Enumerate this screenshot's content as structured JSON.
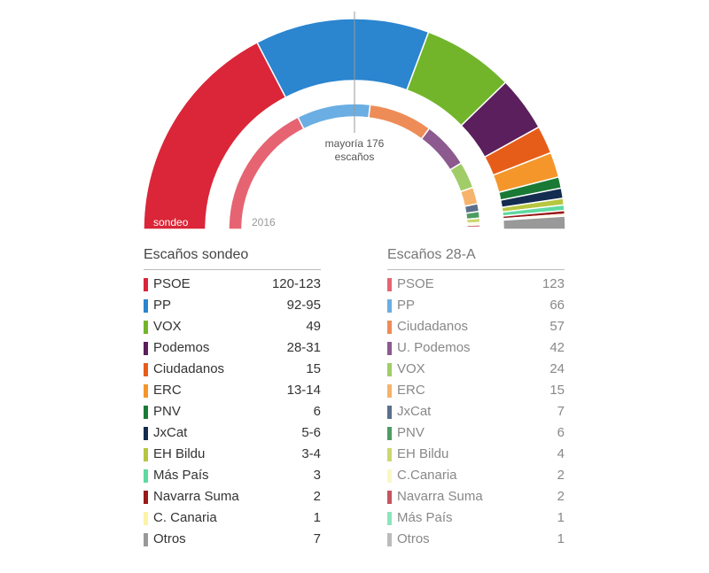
{
  "chart_data": [
    {
      "type": "parliament-semicircle",
      "label": "sondeo",
      "series": [
        {
          "name": "PSOE",
          "value": 121.5,
          "color": "#da2638"
        },
        {
          "name": "PP",
          "value": 93.5,
          "color": "#2b85cf"
        },
        {
          "name": "VOX",
          "value": 49,
          "color": "#72b52b"
        },
        {
          "name": "Podemos",
          "value": 29.5,
          "color": "#5a1f5c"
        },
        {
          "name": "Ciudadanos",
          "value": 15,
          "color": "#e65d1a"
        },
        {
          "name": "ERC",
          "value": 13.5,
          "color": "#f4962a"
        },
        {
          "name": "PNV",
          "value": 6,
          "color": "#1a7a35"
        },
        {
          "name": "JxCat",
          "value": 5.5,
          "color": "#142c4f"
        },
        {
          "name": "EH Bildu",
          "value": 3.5,
          "color": "#b7c640"
        },
        {
          "name": "Más País",
          "value": 3,
          "color": "#5fd9a2"
        },
        {
          "name": "Navarra Suma",
          "value": 2,
          "color": "#9a1919"
        },
        {
          "name": "C. Canaria",
          "value": 1,
          "color": "#fbf4a8"
        },
        {
          "name": "Otros",
          "value": 7,
          "color": "#999999"
        }
      ]
    },
    {
      "type": "parliament-semicircle",
      "label": "2016",
      "series": [
        {
          "name": "PSOE",
          "value": 123,
          "color": "#e66472"
        },
        {
          "name": "PP",
          "value": 66,
          "color": "#6aaee3"
        },
        {
          "name": "Ciudadanos",
          "value": 57,
          "color": "#ee8c58"
        },
        {
          "name": "U. Podemos",
          "value": 42,
          "color": "#8c5a8f"
        },
        {
          "name": "VOX",
          "value": 24,
          "color": "#a0cd67"
        },
        {
          "name": "ERC",
          "value": 15,
          "color": "#f5b36b"
        },
        {
          "name": "JxCat",
          "value": 7,
          "color": "#5b6f8c"
        },
        {
          "name": "PNV",
          "value": 6,
          "color": "#4f9c63"
        },
        {
          "name": "EH Bildu",
          "value": 4,
          "color": "#ccd76f"
        },
        {
          "name": "C.Canaria",
          "value": 2,
          "color": "#fbf7c6"
        },
        {
          "name": "Navarra Suma",
          "value": 2,
          "color": "#c55560"
        },
        {
          "name": "Más País",
          "value": 1,
          "color": "#8ee5bd"
        },
        {
          "name": "Otros",
          "value": 1,
          "color": "#bbbbbb"
        }
      ]
    }
  ],
  "majority": {
    "line1": "mayoría 176",
    "line2": "escaños"
  },
  "table_left": {
    "title": "Escaños sondeo",
    "rows": [
      {
        "party": "PSOE",
        "seats": "120-123",
        "color": "#da2638"
      },
      {
        "party": "PP",
        "seats": "92-95",
        "color": "#2b85cf"
      },
      {
        "party": "VOX",
        "seats": "49",
        "color": "#72b52b"
      },
      {
        "party": "Podemos",
        "seats": "28-31",
        "color": "#5a1f5c"
      },
      {
        "party": "Ciudadanos",
        "seats": "15",
        "color": "#e65d1a"
      },
      {
        "party": "ERC",
        "seats": "13-14",
        "color": "#f4962a"
      },
      {
        "party": "PNV",
        "seats": "6",
        "color": "#1a7a35"
      },
      {
        "party": "JxCat",
        "seats": "5-6",
        "color": "#142c4f"
      },
      {
        "party": "EH Bildu",
        "seats": "3-4",
        "color": "#b7c640"
      },
      {
        "party": "Más País",
        "seats": "3",
        "color": "#5fd9a2"
      },
      {
        "party": "Navarra Suma",
        "seats": "2",
        "color": "#9a1919"
      },
      {
        "party": "C. Canaria",
        "seats": "1",
        "color": "#fbf4a8"
      },
      {
        "party": "Otros",
        "seats": "7",
        "color": "#999999"
      }
    ]
  },
  "table_right": {
    "title": "Escaños 28-A",
    "rows": [
      {
        "party": "PSOE",
        "seats": "123",
        "color": "#e66472"
      },
      {
        "party": "PP",
        "seats": "66",
        "color": "#6aaee3"
      },
      {
        "party": "Ciudadanos",
        "seats": "57",
        "color": "#ee8c58"
      },
      {
        "party": "U. Podemos",
        "seats": "42",
        "color": "#8c5a8f"
      },
      {
        "party": "VOX",
        "seats": "24",
        "color": "#a0cd67"
      },
      {
        "party": "ERC",
        "seats": "15",
        "color": "#f5b36b"
      },
      {
        "party": "JxCat",
        "seats": "7",
        "color": "#5b6f8c"
      },
      {
        "party": "PNV",
        "seats": "6",
        "color": "#4f9c63"
      },
      {
        "party": "EH Bildu",
        "seats": "4",
        "color": "#ccd76f"
      },
      {
        "party": "C.Canaria",
        "seats": "2",
        "color": "#fbf7c6"
      },
      {
        "party": "Navarra Suma",
        "seats": "2",
        "color": "#c55560"
      },
      {
        "party": "Más País",
        "seats": "1",
        "color": "#8ee5bd"
      },
      {
        "party": "Otros",
        "seats": "1",
        "color": "#bbbbbb"
      }
    ]
  }
}
